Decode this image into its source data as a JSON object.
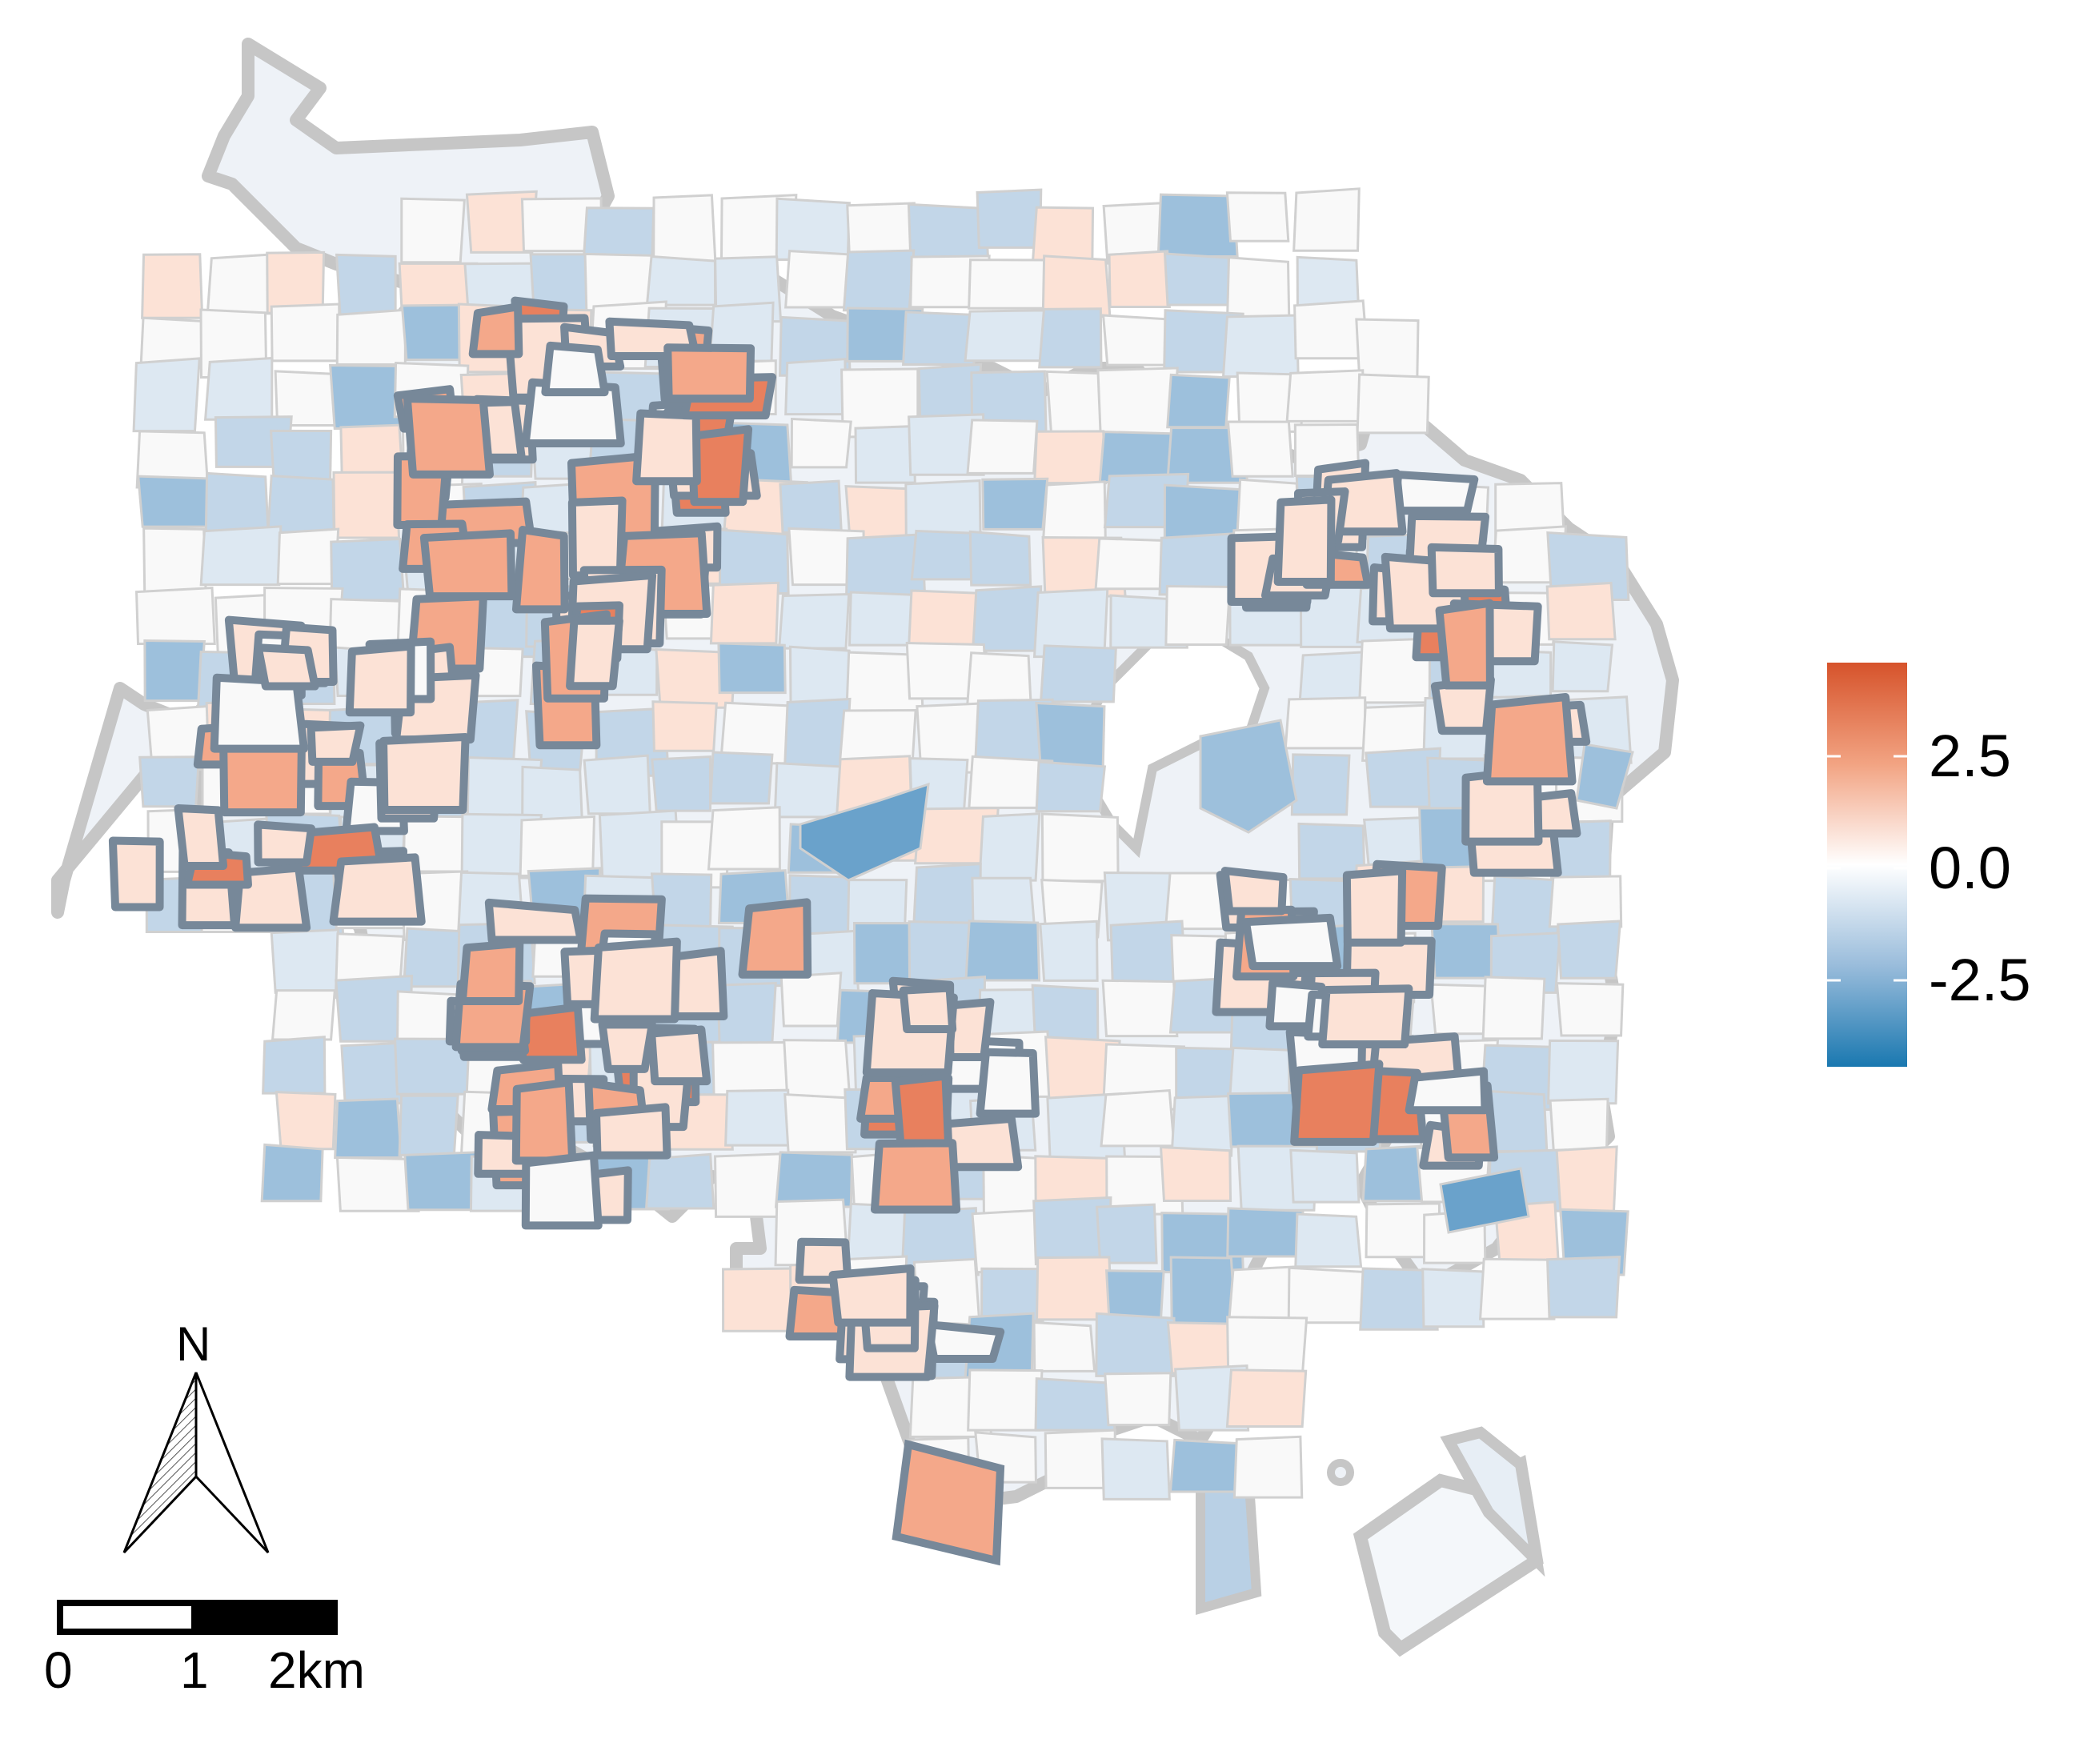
{
  "legend": {
    "ticks": [
      "2.5",
      "0.0",
      "-2.5"
    ],
    "colors": {
      "high": "#d6532b",
      "mid_high": "#f7c5ad",
      "zero": "#ffffff",
      "mid_low": "#a9c6de",
      "low": "#1a78b0"
    }
  },
  "north_arrow": {
    "label": "N"
  },
  "scale_bar": {
    "labels": [
      "0",
      "1",
      "2km"
    ]
  },
  "map_style": {
    "outline_color": "#c8c8c8",
    "highlight_border_color": "#778899",
    "tract_border_color": "#d0d0d0",
    "fill_colors": [
      "#fce2d6",
      "#f4a88a",
      "#e8805e",
      "#f9f9f9",
      "#dde8f2",
      "#c2d6e8",
      "#9dc0dc",
      "#6aa2cb"
    ]
  }
}
